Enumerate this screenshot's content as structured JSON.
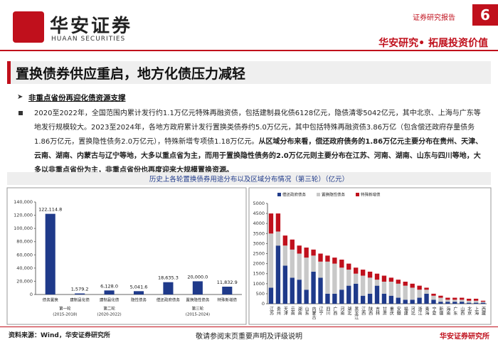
{
  "header": {
    "logo_cn": "华安证券",
    "logo_en": "HUAAN SECURITIES",
    "report_type": "证券研究报告",
    "page_number": "6",
    "slogan": "华安研究• 拓展投资价值"
  },
  "title": "置换债券供应重启，地方化债压力减轻",
  "section_heading": "非重点省份再迎化债资源支撑",
  "paragraph": [
    {
      "text": "2020至2022年，全国范围内累计发行约1.1万亿元特殊再融资债，包括建制县化债6128亿元，隐债清零5042亿元，其中北京、上海与广东等地发行规模较大。2023至2024年，各地方政府累计发行置换类债券约5.0万亿元，其中包括特殊再融资债3.86万亿（包含偿还政府存量债务1.86万亿元，置换隐性债务2.0万亿元），特殊新增专项债1.18万亿元。",
      "bold": false
    },
    {
      "text": "从区域分布来看，偿还政府债务的1.86万亿元主要分布在贵州、天津、云南、湖南、内蒙古与辽宁等地，大多以重点省为主，而用于置换隐性债务的2.0万亿元则主要分布在江苏、河南、湖南、山东与四川等地，大多以非重点省份为主，非重点省份也再度迎来大规模置换资源。",
      "bold": true
    }
  ],
  "caption": "历史上各轮置换债券用途分布以及区域分布情况（第三轮）（亿元）",
  "chart_data": [
    {
      "type": "bar",
      "categories": [
        "债务置换",
        "建制县化债",
        "建制县化债",
        "隐性债务",
        "偿还政府债务",
        "置换隐性债务",
        "特殊新增债"
      ],
      "values": [
        122114.8,
        1579.2,
        6128.0,
        5041.6,
        18635.3,
        20000.0,
        11832.9
      ],
      "value_labels": [
        "122,114.8",
        "1,579.2",
        "6,128.0",
        "5,041.6",
        "18,635.3",
        "20,000.0",
        "11,832.9"
      ],
      "groups": [
        {
          "label": "第一轮",
          "period": "(2015-2018)"
        },
        {
          "label": "第二轮",
          "period": "(2020-2022)"
        },
        {
          "label": "第三轮",
          "period": "(2015-2024)"
        }
      ],
      "color": "#1f3a8a",
      "ylim": [
        0,
        140000
      ],
      "yticks": [
        0,
        {
          "value": 20000,
          "label": "20,000"
        },
        {
          "value": 40000,
          "label": "40,000"
        },
        {
          "value": 60000,
          "label": "60,000"
        },
        {
          "value": 80000,
          "label": "80,000"
        },
        {
          "value": 100000,
          "label": "100,000"
        },
        {
          "value": 120000,
          "label": "120,000"
        },
        {
          "value": 140000,
          "label": "140,000"
        }
      ]
    },
    {
      "type": "stacked_bar",
      "categories": [
        "江苏",
        "贵州",
        "天津",
        "云南",
        "湖南",
        "山东",
        "内蒙古",
        "辽宁",
        "四川",
        "广西",
        "河南",
        "湖北",
        "黑龙江",
        "江西",
        "陕西",
        "吉林",
        "甘肃",
        "重庆",
        "安徽",
        "福建",
        "河北",
        "浙江",
        "青海",
        "宁夏",
        "新疆",
        "海南",
        "广东",
        "山西",
        "北京",
        "上海",
        "西藏"
      ],
      "series": [
        {
          "name": "偿还政府债务",
          "color": "#1f3a8a",
          "values": [
            800,
            2900,
            1900,
            1300,
            1200,
            700,
            1600,
            1300,
            500,
            500,
            700,
            900,
            1000,
            400,
            500,
            900,
            500,
            400,
            300,
            200,
            200,
            300,
            500,
            200,
            100,
            100,
            100,
            100,
            50,
            50,
            50
          ]
        },
        {
          "name": "置换隐性债务",
          "color": "#c8c8c8",
          "values": [
            2700,
            700,
            1000,
            1400,
            1300,
            1600,
            800,
            800,
            1600,
            1500,
            1100,
            800,
            500,
            1000,
            800,
            300,
            600,
            700,
            700,
            700,
            600,
            400,
            200,
            200,
            200,
            100,
            100,
            100,
            100,
            100,
            50
          ]
        },
        {
          "name": "特殊新增债",
          "color": "#c0101c",
          "values": [
            1000,
            900,
            500,
            500,
            400,
            500,
            300,
            400,
            300,
            300,
            400,
            300,
            300,
            300,
            300,
            300,
            300,
            200,
            200,
            200,
            200,
            200,
            100,
            100,
            100,
            100,
            100,
            100,
            100,
            100,
            50
          ]
        }
      ],
      "ylim": [
        0,
        5000
      ],
      "yticks": [
        0,
        500,
        1000,
        1500,
        2000,
        2500,
        3000,
        3500,
        4000,
        4500,
        5000
      ],
      "legend": "top-left"
    }
  ],
  "footer": {
    "source": "资料来源：Wind，华安证券研究所",
    "disclaimer": "敬请参阅末页重要声明及评级说明",
    "institute": "华安证券研究所"
  }
}
